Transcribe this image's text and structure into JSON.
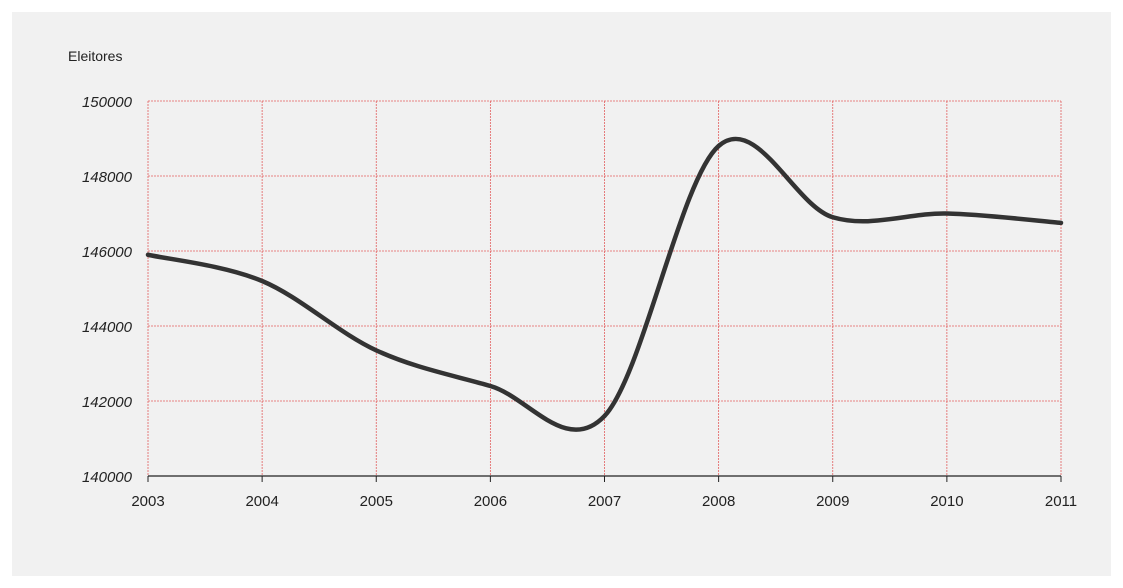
{
  "chart_data": {
    "type": "line",
    "ylabel": "Eleitores",
    "x": [
      "2003",
      "2004",
      "2005",
      "2006",
      "2007",
      "2008",
      "2009",
      "2010",
      "2011"
    ],
    "ylim": [
      140000,
      150000
    ],
    "yticks": [
      "140000",
      "142000",
      "144000",
      "146000",
      "148000",
      "150000"
    ],
    "series": [
      {
        "values": [
          145900,
          145200,
          143350,
          142400,
          141600,
          148800,
          146900,
          147000,
          146750
        ]
      }
    ],
    "grid": true,
    "colors": {
      "line": "#333333",
      "grid": "#e26060",
      "axis": "#222222",
      "background": "#f1f1f1"
    }
  }
}
